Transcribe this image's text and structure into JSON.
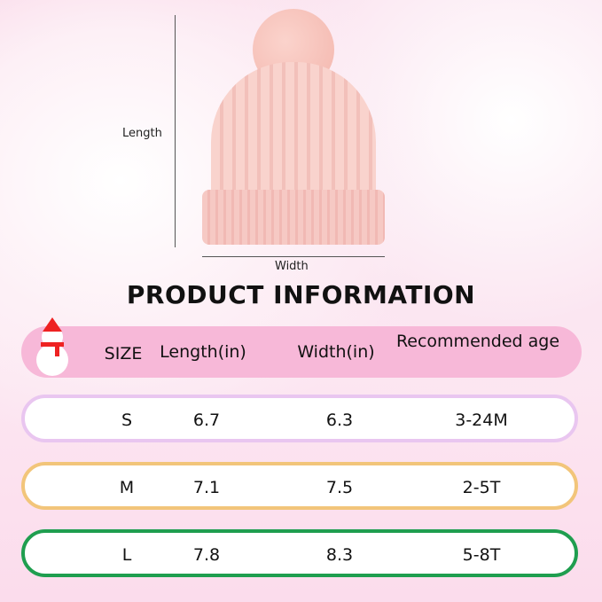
{
  "diagram": {
    "length_label": "Length",
    "width_label": "Width"
  },
  "title": "PRODUCT INFORMATION",
  "table": {
    "headers": [
      "SIZE",
      "Length(in)",
      "Width(in)",
      "Recommended age"
    ],
    "rows": [
      {
        "size": "S",
        "length": "6.7",
        "width": "6.3",
        "age": "3-24M",
        "border": "#e9c6f0"
      },
      {
        "size": "M",
        "length": "7.1",
        "width": "7.5",
        "age": "2-5T",
        "border": "#f2c57a"
      },
      {
        "size": "L",
        "length": "7.8",
        "width": "8.3",
        "age": "5-8T",
        "border": "#1f9e4f"
      }
    ]
  },
  "colors": {
    "header_bg": "#f7b8d8"
  }
}
